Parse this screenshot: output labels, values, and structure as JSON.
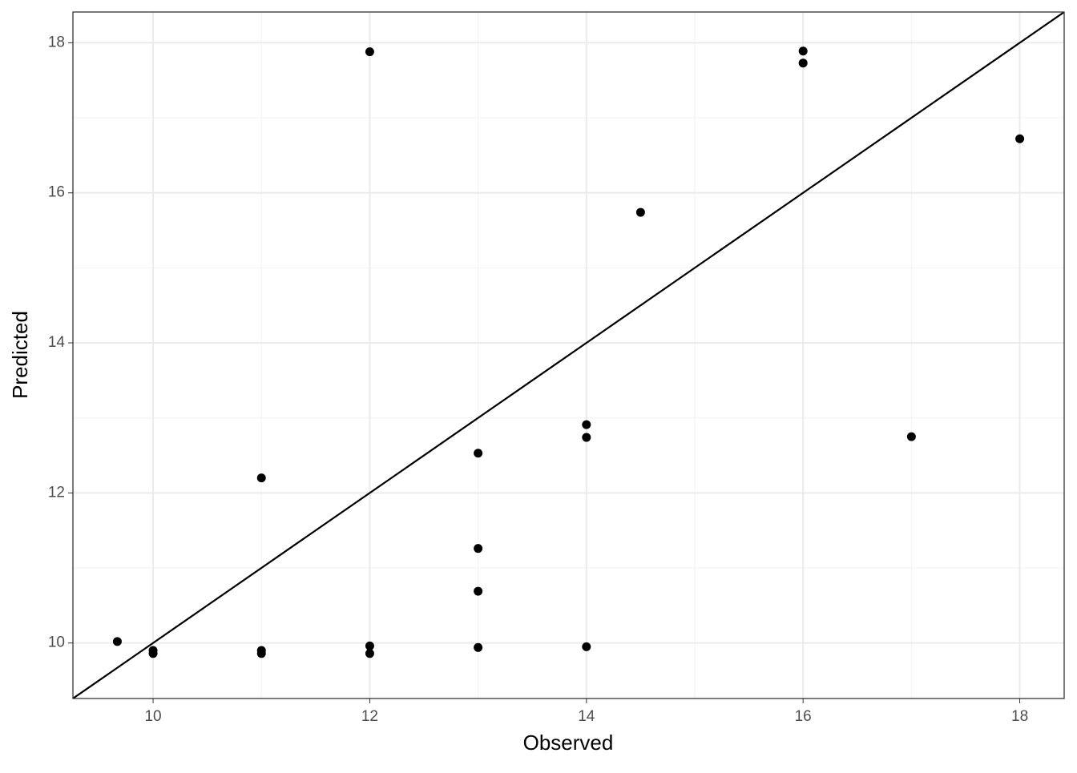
{
  "chart_data": {
    "type": "scatter",
    "x_label": "Observed",
    "y_label": "Predicted",
    "x": [
      9.67,
      10,
      10,
      11,
      11,
      11,
      12,
      12,
      12,
      13,
      13,
      13,
      13,
      14,
      14,
      14,
      14.5,
      16,
      16,
      17,
      18
    ],
    "values": [
      10.02,
      9.9,
      9.86,
      12.2,
      9.9,
      9.86,
      17.88,
      9.96,
      9.86,
      12.53,
      11.26,
      10.69,
      9.94,
      12.91,
      12.74,
      9.95,
      15.74,
      17.89,
      17.73,
      12.75,
      16.72
    ],
    "color": "#000000",
    "xlim": [
      9.26,
      18.41
    ],
    "ylim": [
      9.26,
      18.41
    ],
    "xticks": [
      10,
      12,
      14,
      16,
      18
    ],
    "yticks": [
      10,
      12,
      14,
      16,
      18
    ],
    "grid": true,
    "minor_grid": true,
    "identity_line": true
  }
}
